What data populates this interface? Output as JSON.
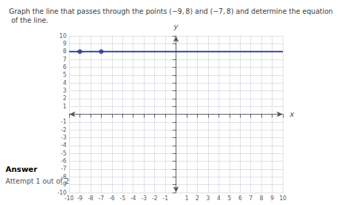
{
  "chart_data": {
    "type": "line",
    "title": "Graph the line that passes through the points (−9, 8) and (−7, 8) and determine the equation of the line.",
    "xlabel": "x",
    "ylabel": "y",
    "xlim": [
      -10,
      10
    ],
    "ylim": [
      -10,
      10
    ],
    "xticks": [
      -10,
      -9,
      -8,
      -7,
      -6,
      -5,
      -4,
      -3,
      -2,
      -1,
      1,
      2,
      3,
      4,
      5,
      6,
      7,
      8,
      9,
      10
    ],
    "yticks": [
      -10,
      -9,
      -8,
      -7,
      -6,
      -5,
      -4,
      -3,
      -2,
      -1,
      1,
      2,
      3,
      4,
      5,
      6,
      7,
      8,
      9,
      10
    ],
    "grid": true,
    "annotations": [
      "Answer",
      "Attempt 1 out of 2"
    ],
    "series": [
      {
        "type": "line",
        "x": [
          -10,
          10
        ],
        "values": [
          8,
          8
        ],
        "color": "#2b3990"
      },
      {
        "type": "scatter",
        "x": [
          -9,
          -7
        ],
        "values": [
          8,
          8
        ],
        "color": "#2b3990",
        "marker": "circle"
      }
    ]
  }
}
